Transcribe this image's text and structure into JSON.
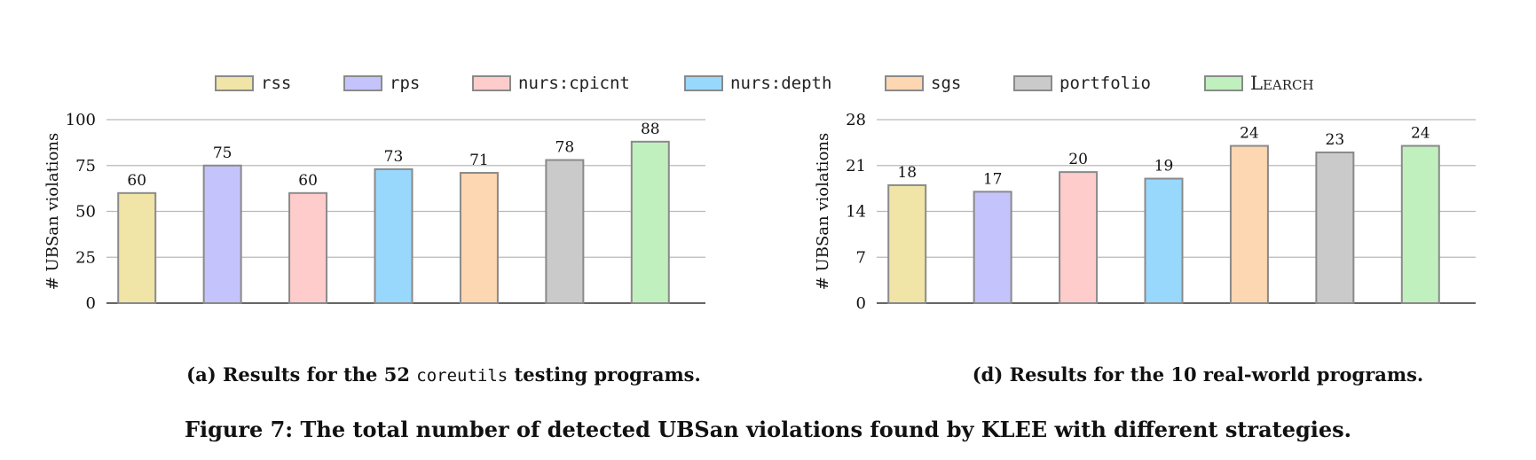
{
  "legend": [
    {
      "label": "rss",
      "color": "#f0e4a6",
      "mono": true
    },
    {
      "label": "rps",
      "color": "#c5c3fb",
      "mono": true
    },
    {
      "label": "nurs:cpicnt",
      "color": "#ffcccc",
      "mono": true
    },
    {
      "label": "nurs:depth",
      "color": "#99d8fd",
      "mono": true
    },
    {
      "label": "sgs",
      "color": "#fdd6b2",
      "mono": true
    },
    {
      "label": "portfolio",
      "color": "#cacaca",
      "mono": true
    },
    {
      "label": "Learch",
      "color": "#c0f0bd",
      "mono": false
    }
  ],
  "chart_data": [
    {
      "type": "bar",
      "categories": [
        "rss",
        "rps",
        "nurs:cpicnt",
        "nurs:depth",
        "sgs",
        "portfolio",
        "Learch"
      ],
      "values": [
        60,
        75,
        60,
        73,
        71,
        78,
        88
      ],
      "ylabel": "# UBSan violations",
      "ylim": [
        0,
        100
      ],
      "yticks": [
        0,
        25,
        50,
        75,
        100
      ],
      "grid": true,
      "caption_pre": "(a) Results for the 52 ",
      "caption_code": "coreutils",
      "caption_post": " testing programs."
    },
    {
      "type": "bar",
      "categories": [
        "rss",
        "rps",
        "nurs:cpicnt",
        "nurs:depth",
        "sgs",
        "portfolio",
        "Learch"
      ],
      "values": [
        18,
        17,
        20,
        19,
        24,
        23,
        24
      ],
      "ylabel": "# UBSan violations",
      "ylim": [
        0,
        28
      ],
      "yticks": [
        0,
        7,
        14,
        21,
        28
      ],
      "grid": true,
      "caption_pre": "(d) Results for the 10 real-world programs.",
      "caption_code": "",
      "caption_post": ""
    }
  ],
  "figure_caption": "Figure 7: The total number of detected UBSan violations found by KLEE with different strategies."
}
